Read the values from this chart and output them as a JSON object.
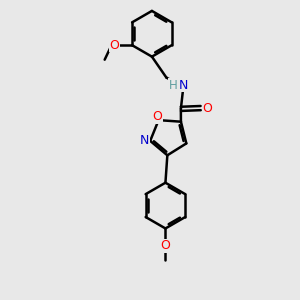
{
  "background_color": "#e8e8e8",
  "line_color": "#000000",
  "bond_lw": 1.8,
  "figsize": [
    3.0,
    3.0
  ],
  "dpi": 100,
  "atom_colors": {
    "N": "#0000cd",
    "O": "#ff0000",
    "H": "#5f9ea0",
    "C": "#000000"
  },
  "xlim": [
    -1.2,
    1.8
  ],
  "ylim": [
    -4.8,
    3.0
  ]
}
